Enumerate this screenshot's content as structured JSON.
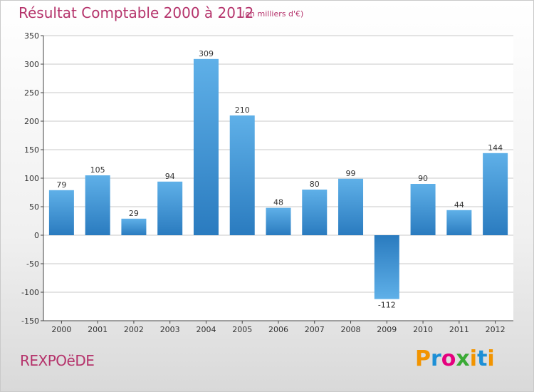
{
  "header": {
    "title": "Résultat Comptable 2000 à 2012",
    "subtitle": "(en milliers d'€)"
  },
  "footer": {
    "commune": "REXPOëDE",
    "brand": [
      "P",
      "r",
      "o",
      "x",
      "i",
      "t",
      "i"
    ]
  },
  "chart_data": {
    "type": "bar",
    "title": "Résultat Comptable 2000 à 2012",
    "subtitle": "(en milliers d'€)",
    "xlabel": "",
    "ylabel": "",
    "categories": [
      "2000",
      "2001",
      "2002",
      "2003",
      "2004",
      "2005",
      "2006",
      "2007",
      "2008",
      "2009",
      "2010",
      "2011",
      "2012"
    ],
    "values": [
      79,
      105,
      29,
      94,
      309,
      210,
      48,
      80,
      99,
      -112,
      90,
      44,
      144
    ],
    "value_labels": [
      "79",
      "105",
      "29",
      "94",
      "309",
      "210",
      "48",
      "80",
      "99",
      "-112",
      "90",
      "44",
      "144"
    ],
    "ylim": [
      -150,
      350
    ],
    "yticks": [
      -150,
      -100,
      -50,
      0,
      50,
      100,
      150,
      200,
      250,
      300,
      350
    ],
    "grid": true,
    "colors": {
      "bar_light": "#5fb0e8",
      "bar_dark": "#2a7bbf",
      "grid": "#c8c8c8"
    }
  }
}
